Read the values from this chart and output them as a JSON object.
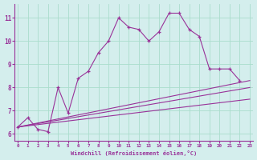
{
  "xlabel": "Windchill (Refroidissement éolien,°C)",
  "bg_color": "#d4eeed",
  "line_color": "#993399",
  "grid_color": "#aaddcc",
  "x_values": [
    0,
    1,
    2,
    3,
    4,
    5,
    6,
    7,
    8,
    9,
    10,
    11,
    12,
    13,
    14,
    15,
    16,
    17,
    18,
    19,
    20,
    21,
    22,
    23
  ],
  "curve1_y": [
    6.3,
    6.7,
    6.2,
    6.1,
    8.0,
    6.9,
    8.4,
    8.7,
    9.5,
    10.0,
    11.0,
    10.6,
    10.5,
    10.0,
    10.4,
    11.2,
    11.2,
    10.5,
    10.2,
    8.8,
    8.8,
    8.8,
    8.3,
    null
  ],
  "straight_lines": [
    {
      "x0": 0,
      "y0": 6.3,
      "x1": 23,
      "y1": 8.3
    },
    {
      "x0": 0,
      "y0": 6.3,
      "x1": 23,
      "y1": 8.0
    },
    {
      "x0": 0,
      "y0": 6.3,
      "x1": 23,
      "y1": 7.5
    }
  ],
  "ylim": [
    5.7,
    11.6
  ],
  "xlim": [
    -0.3,
    23.3
  ],
  "yticks": [
    6,
    7,
    8,
    9,
    10,
    11
  ],
  "xticks": [
    0,
    1,
    2,
    3,
    4,
    5,
    6,
    7,
    8,
    9,
    10,
    11,
    12,
    13,
    14,
    15,
    16,
    17,
    18,
    19,
    20,
    21,
    22,
    23
  ]
}
